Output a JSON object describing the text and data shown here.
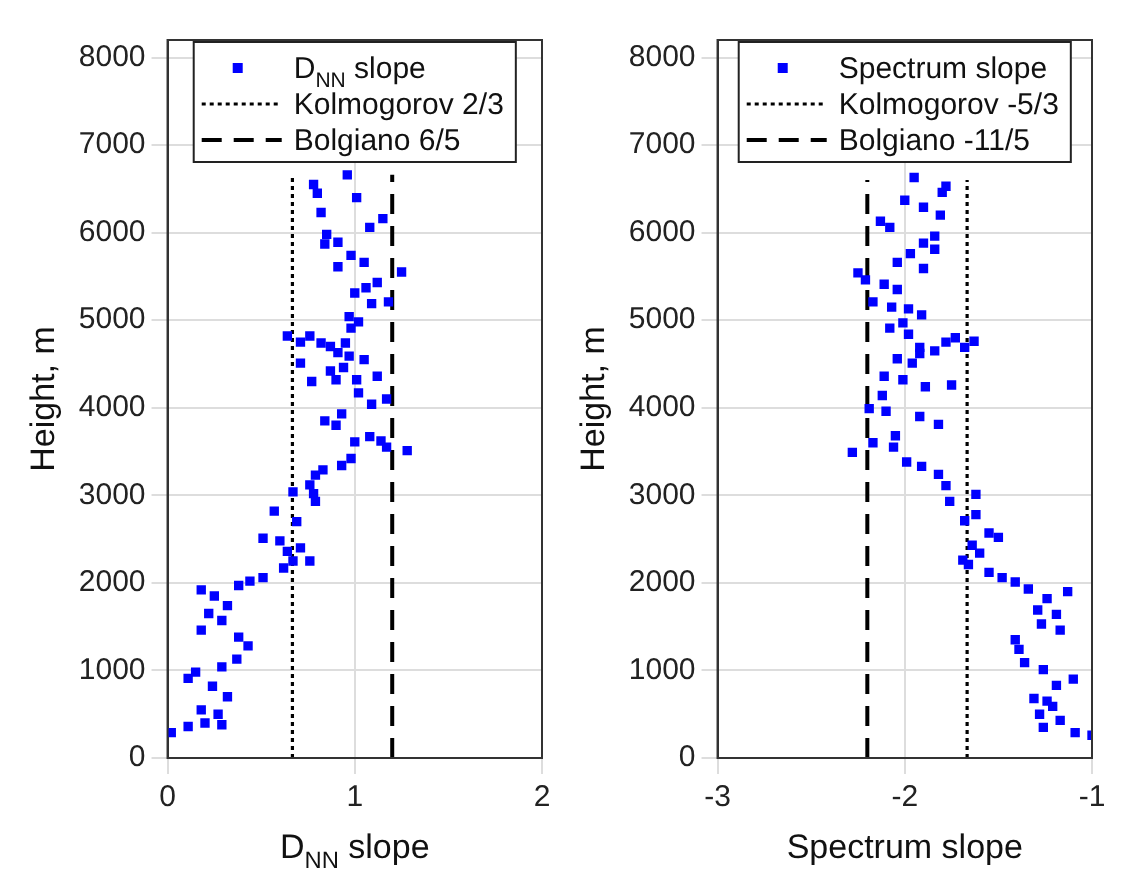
{
  "chart_data": [
    {
      "type": "scatter",
      "xlabel": "D$_{NN}$ slope",
      "ylabel": "Height, m",
      "xlim": [
        0,
        2
      ],
      "xticks": [
        0,
        1,
        2
      ],
      "ylim": [
        0,
        8200
      ],
      "yticks": [
        0,
        1000,
        2000,
        3000,
        4000,
        5000,
        6000,
        7000,
        8000
      ],
      "grid": true,
      "legend": "top",
      "series": [
        {
          "name": "D$_{NN}$ slope",
          "color": "#0000ff",
          "marker": "square",
          "x": [
            0.96,
            0.78,
            0.8,
            1.01,
            0.82,
            1.08,
            1.15,
            0.85,
            0.84,
            0.91,
            0.98,
            0.91,
            1.05,
            1.25,
            1.12,
            1.06,
            1.0,
            1.09,
            1.18,
            0.97,
            1.02,
            0.98,
            0.64,
            0.71,
            0.76,
            0.82,
            0.87,
            0.95,
            0.91,
            0.97,
            0.71,
            1.05,
            0.94,
            0.87,
            0.77,
            0.9,
            1.01,
            1.12,
            1.02,
            1.17,
            1.09,
            0.93,
            0.84,
            0.9,
            1.08,
            1.14,
            1.0,
            1.17,
            1.28,
            0.98,
            0.93,
            0.83,
            0.79,
            0.76,
            0.78,
            0.67,
            0.79,
            0.57,
            0.69,
            0.51,
            0.6,
            0.64,
            0.71,
            0.76,
            0.67,
            0.62,
            0.51,
            0.44,
            0.38,
            0.18,
            0.25,
            0.32,
            0.22,
            0.29,
            0.18,
            0.38,
            0.43,
            0.37,
            0.29,
            0.15,
            0.11,
            0.24,
            0.32,
            0.18,
            0.27,
            0.2,
            0.11,
            0.02,
            0.29
          ],
          "values": [
            6660,
            6550,
            6450,
            6400,
            6230,
            6060,
            6160,
            5980,
            5870,
            5890,
            5740,
            5610,
            5660,
            5550,
            5430,
            5370,
            5310,
            5190,
            5210,
            5040,
            4980,
            4910,
            4820,
            4750,
            4820,
            4740,
            4700,
            4740,
            4630,
            4590,
            4510,
            4550,
            4460,
            4420,
            4300,
            4320,
            4320,
            4360,
            4170,
            4100,
            4040,
            3930,
            3850,
            3800,
            3670,
            3620,
            3610,
            3550,
            3510,
            3420,
            3340,
            3290,
            3230,
            3120,
            3020,
            3040,
            2930,
            2820,
            2700,
            2510,
            2480,
            2360,
            2400,
            2250,
            2250,
            2170,
            2060,
            2020,
            1970,
            1920,
            1850,
            1740,
            1650,
            1570,
            1460,
            1380,
            1280,
            1130,
            1040,
            980,
            910,
            820,
            700,
            550,
            500,
            400,
            360,
            290,
            380
          ]
        },
        {
          "name": "Kolmogorov 2/3",
          "type": "line",
          "color": "#000000",
          "line_style": "dotted",
          "x": [
            0.667,
            0.667
          ],
          "values": [
            0,
            6660
          ]
        },
        {
          "name": "Bolgiano 6/5",
          "type": "line",
          "color": "#000000",
          "line_style": "dashed",
          "x": [
            1.2,
            1.2
          ],
          "values": [
            0,
            6660
          ]
        }
      ]
    },
    {
      "type": "scatter",
      "xlabel": "Spectrum slope",
      "ylabel": "Height, m",
      "xlim": [
        -3,
        -1
      ],
      "xticks": [
        -3,
        -2,
        -1
      ],
      "ylim": [
        0,
        8200
      ],
      "yticks": [
        0,
        1000,
        2000,
        3000,
        4000,
        5000,
        6000,
        7000,
        8000
      ],
      "grid": true,
      "legend": "top",
      "series": [
        {
          "name": "Spectrum slope",
          "color": "#0000ff",
          "marker": "square",
          "x": [
            -1.95,
            -1.78,
            -1.8,
            -2.0,
            -1.9,
            -1.81,
            -2.13,
            -2.08,
            -1.84,
            -1.9,
            -1.84,
            -1.97,
            -2.04,
            -1.9,
            -2.25,
            -2.21,
            -2.11,
            -2.04,
            -2.17,
            -2.07,
            -1.98,
            -1.91,
            -2.01,
            -2.08,
            -1.98,
            -1.92,
            -1.78,
            -1.73,
            -1.63,
            -1.68,
            -1.84,
            -2.04,
            -1.96,
            -1.92,
            -2.11,
            -2.01,
            -1.89,
            -1.75,
            -2.12,
            -2.19,
            -2.1,
            -1.92,
            -1.82,
            -2.05,
            -2.17,
            -2.28,
            -2.06,
            -1.99,
            -1.91,
            -1.82,
            -1.78,
            -1.76,
            -1.62,
            -1.68,
            -1.62,
            -1.55,
            -1.5,
            -1.64,
            -1.6,
            -1.69,
            -1.66,
            -1.55,
            -1.48,
            -1.41,
            -1.34,
            -1.13,
            -1.24,
            -1.29,
            -1.19,
            -1.27,
            -1.17,
            -1.41,
            -1.39,
            -1.36,
            -1.26,
            -1.1,
            -1.19,
            -1.31,
            -1.24,
            -1.21,
            -1.28,
            -1.17,
            -1.09,
            -1.0,
            -1.26
          ],
          "values": [
            6630,
            6530,
            6460,
            6370,
            6290,
            6200,
            6130,
            6060,
            5960,
            5880,
            5810,
            5760,
            5660,
            5590,
            5540,
            5460,
            5410,
            5350,
            5210,
            5150,
            5130,
            5060,
            4970,
            4910,
            4840,
            4690,
            4750,
            4800,
            4760,
            4690,
            4650,
            4560,
            4510,
            4620,
            4360,
            4320,
            4240,
            4260,
            4140,
            3990,
            3960,
            3900,
            3810,
            3680,
            3600,
            3490,
            3550,
            3380,
            3330,
            3240,
            3110,
            2930,
            3010,
            2710,
            2780,
            2570,
            2520,
            2430,
            2340,
            2260,
            2210,
            2120,
            2060,
            2010,
            1930,
            1900,
            1820,
            1690,
            1640,
            1530,
            1460,
            1350,
            1240,
            1090,
            1010,
            900,
            830,
            680,
            650,
            590,
            500,
            430,
            290,
            260,
            350
          ]
        },
        {
          "name": "Kolmogorov -5/3",
          "type": "line",
          "color": "#000000",
          "line_style": "dotted",
          "x": [
            -1.667,
            -1.667
          ],
          "values": [
            0,
            6600
          ]
        },
        {
          "name": "Bolgiano -11/5",
          "type": "line",
          "color": "#000000",
          "line_style": "dashed",
          "x": [
            -2.2,
            -2.2
          ],
          "values": [
            0,
            6600
          ]
        }
      ]
    }
  ]
}
